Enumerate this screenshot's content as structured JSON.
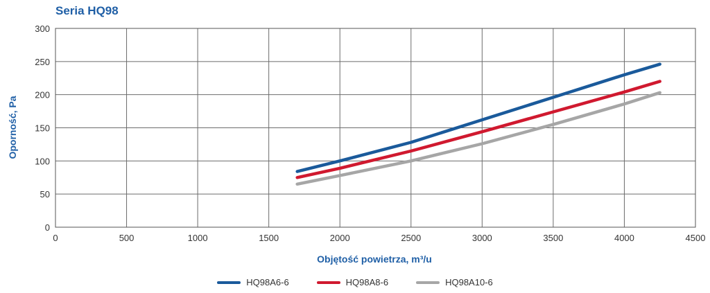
{
  "chart_data": {
    "type": "line",
    "title": "Seria HQ98",
    "xlabel": "Objętość powietrza, m³/u",
    "ylabel": "Oporność, Pa",
    "xlim": [
      0,
      4500
    ],
    "ylim": [
      0,
      300
    ],
    "x_ticks": [
      0,
      500,
      1000,
      1500,
      2000,
      2500,
      3000,
      3500,
      4000,
      4500
    ],
    "y_ticks": [
      0,
      50,
      100,
      150,
      200,
      250,
      300
    ],
    "grid": true,
    "legend_position": "bottom",
    "series": [
      {
        "name": "HQ98A6-6",
        "color": "#1a5a9b",
        "x": [
          1700,
          2000,
          2500,
          3000,
          3500,
          4000,
          4250
        ],
        "y": [
          84,
          100,
          128,
          162,
          196,
          230,
          246
        ]
      },
      {
        "name": "HQ98A8-6",
        "color": "#d0192f",
        "x": [
          1700,
          2000,
          2500,
          3000,
          3500,
          4000,
          4250
        ],
        "y": [
          75,
          89,
          115,
          144,
          174,
          204,
          220
        ]
      },
      {
        "name": "HQ98A10-6",
        "color": "#a6a6a6",
        "x": [
          1700,
          2000,
          2500,
          3000,
          3500,
          4000,
          4250
        ],
        "y": [
          65,
          78,
          100,
          126,
          155,
          186,
          203
        ]
      }
    ]
  }
}
